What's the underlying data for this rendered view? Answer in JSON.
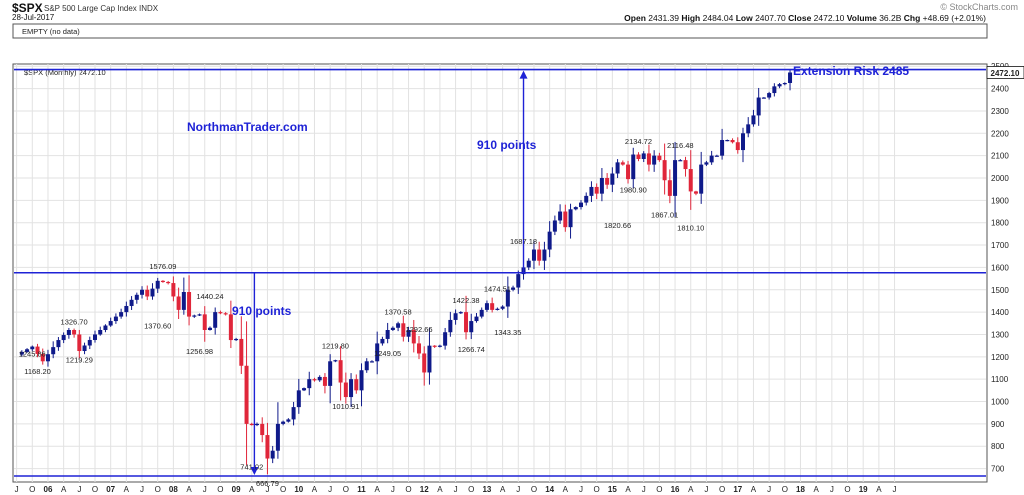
{
  "header": {
    "symbol": "$SPX",
    "name": "S&P 500 Large Cap Index INDX",
    "date": "28-Jul-2017",
    "brand": "© StockCharts.com",
    "empty_label": "EMPTY (no data)",
    "panel_label": "$SPX (Monthly) 2472.10",
    "ohlc": [
      {
        "k": "Open",
        "v": "2431.39"
      },
      {
        "k": "High",
        "v": "2484.04"
      },
      {
        "k": "Low",
        "v": "2407.70"
      },
      {
        "k": "Close",
        "v": "2472.10"
      },
      {
        "k": "Volume",
        "v": "36.2B"
      },
      {
        "k": "Chg",
        "v": "+48.69 (+2.01%)"
      }
    ]
  },
  "colors": {
    "up": "#0f1a8a",
    "down": "#e0263a",
    "annotation": "#1e22d6",
    "grid": "#e2e2e2"
  },
  "chart_data": {
    "type": "candlestick",
    "title": "$SPX (Monthly) 2472.10",
    "price_label": "2472.10",
    "ylim": [
      640,
      2510
    ],
    "yticks": [
      700,
      800,
      900,
      1000,
      1100,
      1200,
      1300,
      1400,
      1500,
      1600,
      1700,
      1800,
      1900,
      2000,
      2100,
      2200,
      2300,
      2400,
      2500
    ],
    "x_start": "2005-07",
    "x_months": 186,
    "x_labels": [
      "J",
      "O",
      "06",
      "A",
      "J",
      "O",
      "07",
      "A",
      "J",
      "O",
      "08",
      "A",
      "J",
      "O",
      "09",
      "A",
      "J",
      "O",
      "10",
      "A",
      "J",
      "O",
      "11",
      "A",
      "J",
      "O",
      "12",
      "A",
      "J",
      "O",
      "13",
      "A",
      "J",
      "O",
      "14",
      "A",
      "J",
      "O",
      "15",
      "A",
      "J",
      "O",
      "16",
      "A",
      "J",
      "O",
      "17",
      "A",
      "J",
      "O",
      "18",
      "A",
      "J",
      "O",
      "19",
      "A",
      "J"
    ],
    "waypoints": [
      [
        0,
        1210
      ],
      [
        3,
        1245.86
      ],
      [
        5,
        1180
      ],
      [
        8,
        1275
      ],
      [
        10,
        1320
      ],
      [
        11,
        1300
      ],
      [
        12,
        1226
      ],
      [
        15,
        1300
      ],
      [
        18,
        1360
      ],
      [
        20,
        1400
      ],
      [
        22,
        1455
      ],
      [
        24,
        1500
      ],
      [
        25,
        1470
      ],
      [
        27,
        1540
      ],
      [
        29,
        1530
      ],
      [
        31,
        1410
      ],
      [
        32,
        1490
      ],
      [
        33,
        1380
      ],
      [
        35,
        1390
      ],
      [
        36,
        1320
      ],
      [
        37,
        1330
      ],
      [
        38,
        1400
      ],
      [
        40,
        1390
      ],
      [
        41,
        1275
      ],
      [
        42,
        1280
      ],
      [
        43,
        1160
      ],
      [
        44,
        900
      ],
      [
        45,
        895
      ],
      [
        46,
        900
      ],
      [
        47,
        850
      ],
      [
        48,
        745
      ],
      [
        49,
        780
      ],
      [
        50,
        900
      ],
      [
        52,
        920
      ],
      [
        53,
        975
      ],
      [
        54,
        1050
      ],
      [
        55,
        1060
      ],
      [
        56,
        1100
      ],
      [
        57,
        1095
      ],
      [
        58,
        1110
      ],
      [
        59,
        1070
      ],
      [
        60,
        1180
      ],
      [
        61,
        1185
      ],
      [
        62,
        1085
      ],
      [
        63,
        1020
      ],
      [
        64,
        1100
      ],
      [
        65,
        1050
      ],
      [
        66,
        1140
      ],
      [
        67,
        1180
      ],
      [
        68,
        1180
      ],
      [
        69,
        1260
      ],
      [
        70,
        1280
      ],
      [
        71,
        1320
      ],
      [
        72,
        1330
      ],
      [
        73,
        1350
      ],
      [
        74,
        1290
      ],
      [
        75,
        1320
      ],
      [
        76,
        1260
      ],
      [
        77,
        1215
      ],
      [
        78,
        1130
      ],
      [
        79,
        1250
      ],
      [
        80,
        1245
      ],
      [
        81,
        1250
      ],
      [
        82,
        1310
      ],
      [
        83,
        1365
      ],
      [
        84,
        1395
      ],
      [
        85,
        1400
      ],
      [
        86,
        1310
      ],
      [
        87,
        1360
      ],
      [
        88,
        1380
      ],
      [
        89,
        1410
      ],
      [
        90,
        1440
      ],
      [
        91,
        1410
      ],
      [
        92,
        1415
      ],
      [
        93,
        1425
      ],
      [
        94,
        1500
      ],
      [
        95,
        1510
      ],
      [
        96,
        1570
      ],
      [
        97,
        1600
      ],
      [
        98,
        1630
      ],
      [
        99,
        1680
      ],
      [
        100,
        1630
      ],
      [
        101,
        1680
      ],
      [
        102,
        1760
      ],
      [
        103,
        1810
      ],
      [
        104,
        1850
      ],
      [
        105,
        1780
      ],
      [
        106,
        1860
      ],
      [
        107,
        1870
      ],
      [
        108,
        1890
      ],
      [
        109,
        1920
      ],
      [
        110,
        1960
      ],
      [
        111,
        1930
      ],
      [
        112,
        2000
      ],
      [
        113,
        1970
      ],
      [
        114,
        2020
      ],
      [
        115,
        2070
      ],
      [
        116,
        2060
      ],
      [
        117,
        1995
      ],
      [
        118,
        2105
      ],
      [
        119,
        2085
      ],
      [
        120,
        2110
      ],
      [
        121,
        2060
      ],
      [
        122,
        2100
      ],
      [
        123,
        2080
      ],
      [
        124,
        1990
      ],
      [
        125,
        1920
      ],
      [
        126,
        2080
      ],
      [
        127,
        2080
      ],
      [
        128,
        2040
      ],
      [
        129,
        1940
      ],
      [
        130,
        1930
      ],
      [
        131,
        2060
      ],
      [
        132,
        2070
      ],
      [
        133,
        2100
      ],
      [
        134,
        2100
      ],
      [
        135,
        2170
      ],
      [
        136,
        2170
      ],
      [
        137,
        2160
      ],
      [
        138,
        2125
      ],
      [
        139,
        2200
      ],
      [
        140,
        2240
      ],
      [
        141,
        2280
      ],
      [
        142,
        2360
      ],
      [
        143,
        2360
      ],
      [
        144,
        2380
      ],
      [
        145,
        2410
      ],
      [
        146,
        2420
      ],
      [
        147,
        2425
      ],
      [
        148,
        2472.1
      ]
    ],
    "candle_seed": 11,
    "annotations": [
      {
        "price": "2484.04",
        "text": "Extension Risk 2485"
      },
      {
        "text": "910 points"
      },
      {
        "text": "910 points"
      },
      {
        "text": "NorthmanTrader.com"
      }
    ],
    "h_levels": [
      2485,
      1576.09,
      666.79
    ],
    "labels": [
      {
        "t": "1245.86",
        "m": 3,
        "v": 1245.86
      },
      {
        "t": "1168.20",
        "m": 4,
        "v": 1168.2
      },
      {
        "t": "1326.70",
        "m": 11,
        "v": 1326.7
      },
      {
        "t": "1219.29",
        "m": 12,
        "v": 1219.29
      },
      {
        "t": "1576.09",
        "m": 28,
        "v": 1576.09
      },
      {
        "t": "1370.60",
        "m": 27,
        "v": 1370.6
      },
      {
        "t": "1440.24",
        "m": 37,
        "v": 1440.24
      },
      {
        "t": "1256.98",
        "m": 35,
        "v": 1256.98
      },
      {
        "t": "741.02",
        "m": 45,
        "v": 741.02
      },
      {
        "t": "666.79",
        "m": 48,
        "v": 666.79
      },
      {
        "t": "1219.80",
        "m": 61,
        "v": 1219.8
      },
      {
        "t": "1010.91",
        "m": 63,
        "v": 1010.91
      },
      {
        "t": "1370.58",
        "m": 73,
        "v": 1370.58
      },
      {
        "t": "1249.05",
        "m": 71,
        "v": 1249.05
      },
      {
        "t": "1292.66",
        "m": 77,
        "v": 1292.66
      },
      {
        "t": "1422.38",
        "m": 86,
        "v": 1422.38
      },
      {
        "t": "1474.51",
        "m": 92,
        "v": 1474.51
      },
      {
        "t": "1266.74",
        "m": 87,
        "v": 1266.74
      },
      {
        "t": "1343.35",
        "m": 94,
        "v": 1343.35
      },
      {
        "t": "1687.18",
        "m": 97,
        "v": 1687.18
      },
      {
        "t": "1820.66",
        "m": 115,
        "v": 1820.66
      },
      {
        "t": "1980.90",
        "m": 118,
        "v": 1980.9
      },
      {
        "t": "2134.72",
        "m": 119,
        "v": 2134.72
      },
      {
        "t": "2116.48",
        "m": 127,
        "v": 2116.48
      },
      {
        "t": "1867.01",
        "m": 124,
        "v": 1867.01
      },
      {
        "t": "1810.10",
        "m": 129,
        "v": 1810.1
      }
    ]
  }
}
